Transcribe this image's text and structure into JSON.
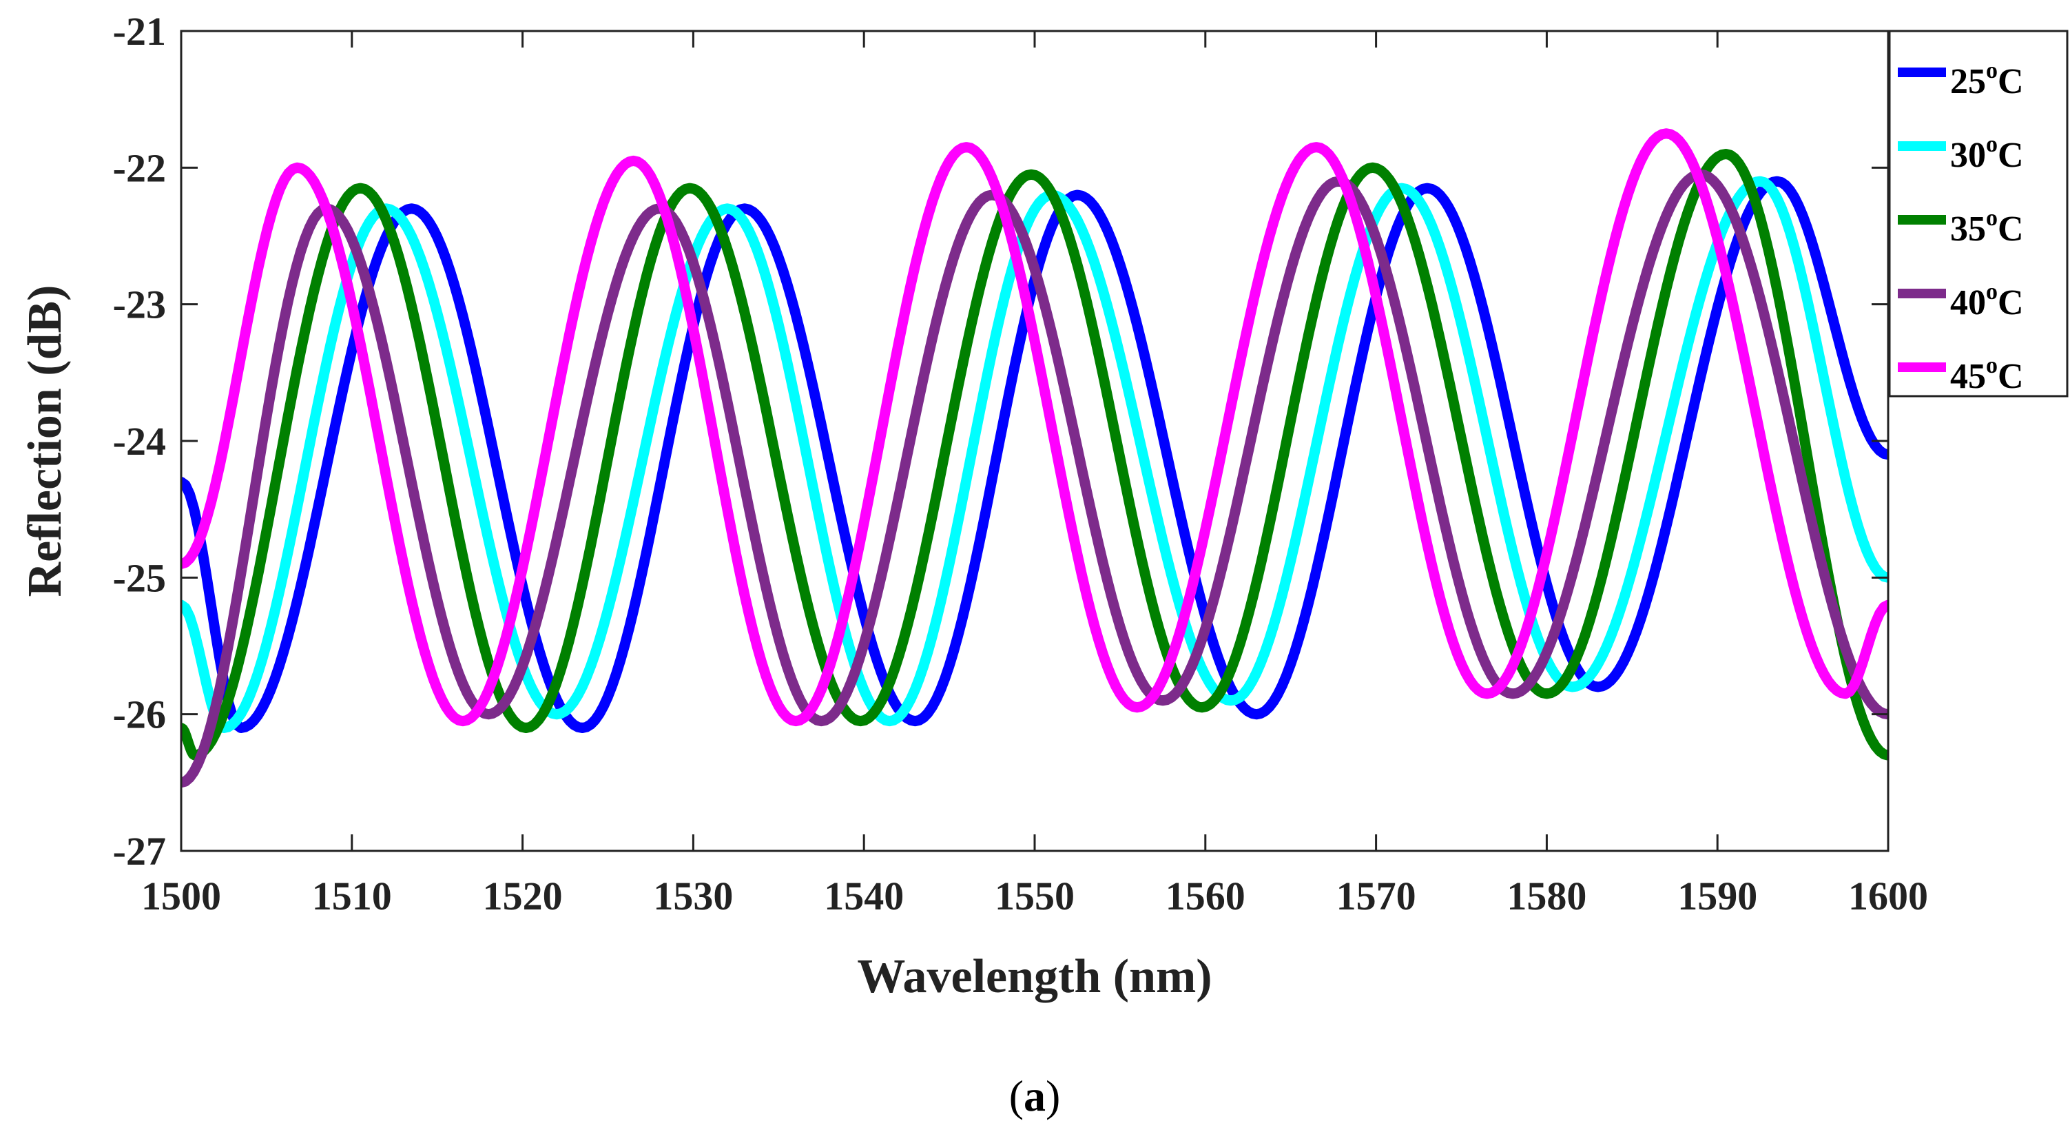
{
  "chart_data": {
    "type": "line",
    "title": "",
    "xlabel": "Wavelength (nm)",
    "ylabel": "Reflection (dB)",
    "xlim": [
      1500,
      1600
    ],
    "ylim": [
      -27,
      -21
    ],
    "xticks": [
      1500,
      1510,
      1520,
      1530,
      1540,
      1550,
      1560,
      1570,
      1580,
      1590,
      1600
    ],
    "yticks": [
      -21,
      -22,
      -23,
      -24,
      -25,
      -26,
      -27
    ],
    "legend_position": "outside-top-right",
    "grid": false,
    "series": [
      {
        "name": "25",
        "unit_sup": "o",
        "unit": "C",
        "color": "#0000ff",
        "x": [
          1500,
          1503.5,
          1513.5,
          1523.5,
          1533,
          1543,
          1552.5,
          1563,
          1573,
          1583,
          1593.5,
          1600
        ],
        "y": [
          -24.3,
          -26.1,
          -22.3,
          -26.1,
          -22.3,
          -26.05,
          -22.2,
          -26.0,
          -22.15,
          -25.8,
          -22.1,
          -24.1
        ]
      },
      {
        "name": "30",
        "unit_sup": "o",
        "unit": "C",
        "color": "#00ffff",
        "x": [
          1500,
          1502.5,
          1512,
          1522,
          1532,
          1541.5,
          1551,
          1561.5,
          1571.5,
          1581.5,
          1592.5,
          1600
        ],
        "y": [
          -25.2,
          -26.1,
          -22.3,
          -26.0,
          -22.3,
          -26.05,
          -22.2,
          -25.9,
          -22.15,
          -25.8,
          -22.1,
          -25.0
        ]
      },
      {
        "name": "35",
        "unit_sup": "o",
        "unit": "C",
        "color": "#008000",
        "x": [
          1500,
          1500.8,
          1510.5,
          1520.2,
          1529.8,
          1539.8,
          1549.8,
          1559.8,
          1569.8,
          1580,
          1590.5,
          1600
        ],
        "y": [
          -26.1,
          -26.3,
          -22.15,
          -26.1,
          -22.15,
          -26.05,
          -22.05,
          -25.95,
          -22.0,
          -25.85,
          -21.9,
          -26.3
        ]
      },
      {
        "name": "40",
        "unit_sup": "o",
        "unit": "C",
        "color": "#7d2b8b",
        "x": [
          1500,
          1508.5,
          1518,
          1528,
          1537.5,
          1547.5,
          1557.5,
          1567.8,
          1578,
          1589,
          1600
        ],
        "y": [
          -26.5,
          -22.3,
          -26.0,
          -22.3,
          -26.05,
          -22.2,
          -25.9,
          -22.1,
          -25.85,
          -22.05,
          -26.0
        ]
      },
      {
        "name": "45",
        "unit_sup": "o",
        "unit": "C",
        "color": "#ff00ff",
        "x": [
          1500,
          1506.8,
          1516.5,
          1526.5,
          1536,
          1546,
          1556,
          1566.5,
          1576.5,
          1587,
          1597.5,
          1600
        ],
        "y": [
          -24.9,
          -22.0,
          -26.05,
          -21.95,
          -26.05,
          -21.85,
          -25.95,
          -21.85,
          -25.85,
          -21.75,
          -25.85,
          -25.2
        ]
      }
    ]
  },
  "caption": {
    "open": "(",
    "letter": "a",
    "close": ")"
  }
}
